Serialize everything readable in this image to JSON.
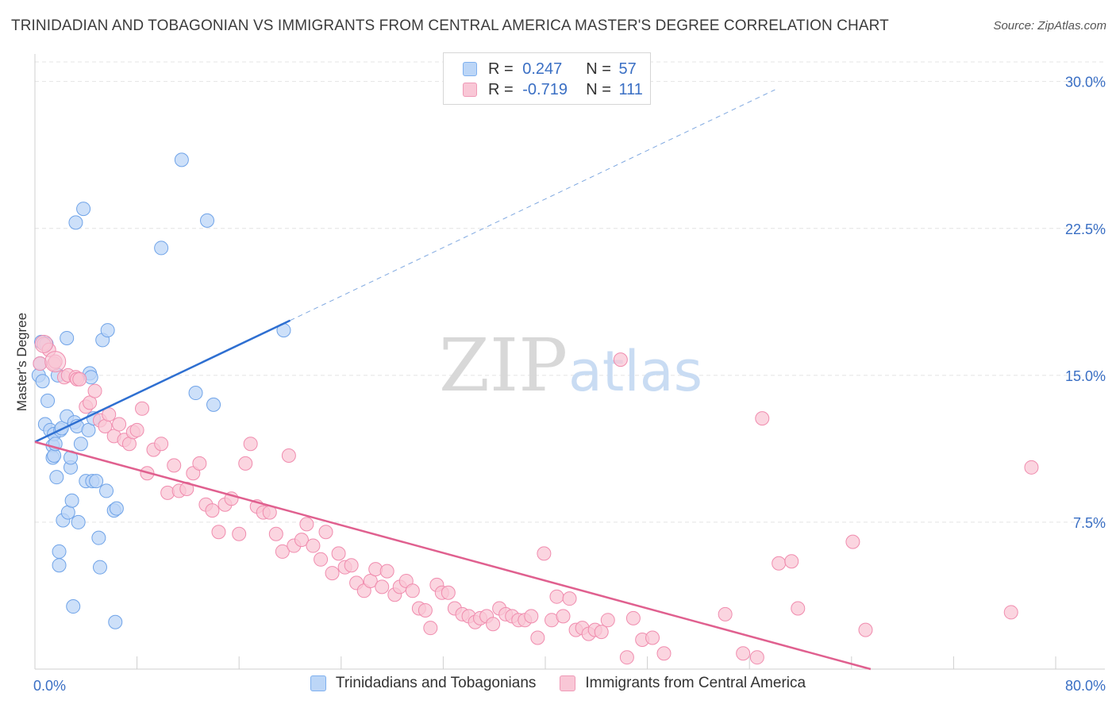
{
  "header": {
    "title": "TRINIDADIAN AND TOBAGONIAN VS IMMIGRANTS FROM CENTRAL AMERICA MASTER'S DEGREE CORRELATION CHART",
    "source": "Source: ZipAtlas.com"
  },
  "watermark": {
    "zip": "ZIP",
    "atlas": "atlas"
  },
  "legend": {
    "r_label": "R =",
    "n_label": "N =",
    "rows": [
      {
        "r": "0.247",
        "n": "57",
        "color": "#7fb0ef",
        "fill": "#bcd6f7"
      },
      {
        "r": "-0.719",
        "n": "111",
        "color": "#ef9ab7",
        "fill": "#f9c7d6"
      }
    ]
  },
  "chart_data": {
    "type": "scatter",
    "title": "TRINIDADIAN AND TOBAGONIAN VS IMMIGRANTS FROM CENTRAL AMERICA MASTER'S DEGREE CORRELATION CHART",
    "xlabel": "",
    "ylabel": "Master's Degree",
    "xlim": [
      0,
      80
    ],
    "ylim": [
      0,
      31
    ],
    "x_tick_labels": [
      "0.0%",
      "80.0%"
    ],
    "y_ticks": [
      7.5,
      15.0,
      22.5,
      30.0
    ],
    "y_tick_labels": [
      "7.5%",
      "15.0%",
      "22.5%",
      "30.0%"
    ],
    "grid": true,
    "legend_position": "bottom-center",
    "series": [
      {
        "name": "Trinidadians and Tobagonians",
        "color": "#6fa3e8",
        "line_color": "#2e6fd1",
        "trend": {
          "x0": 0,
          "y0": 11.6,
          "x1": 20.0,
          "y1": 17.8,
          "dash_to_x": 58.0
        },
        "points": [
          [
            0.3,
            15.0
          ],
          [
            0.4,
            15.6
          ],
          [
            0.5,
            16.7
          ],
          [
            0.6,
            14.7
          ],
          [
            0.8,
            12.5
          ],
          [
            0.9,
            16.6
          ],
          [
            1.0,
            13.7
          ],
          [
            1.2,
            12.2
          ],
          [
            1.4,
            11.4
          ],
          [
            1.4,
            10.8
          ],
          [
            1.5,
            12.0
          ],
          [
            1.5,
            10.9
          ],
          [
            1.6,
            11.5
          ],
          [
            1.7,
            9.8
          ],
          [
            1.8,
            15.0
          ],
          [
            1.9,
            6.0
          ],
          [
            1.9,
            5.3
          ],
          [
            2.0,
            12.2
          ],
          [
            2.1,
            12.3
          ],
          [
            2.2,
            7.6
          ],
          [
            2.5,
            16.9
          ],
          [
            2.5,
            12.9
          ],
          [
            2.6,
            8.0
          ],
          [
            2.8,
            10.3
          ],
          [
            2.8,
            10.8
          ],
          [
            2.9,
            8.6
          ],
          [
            3.0,
            3.2
          ],
          [
            3.1,
            12.6
          ],
          [
            3.2,
            22.8
          ],
          [
            3.3,
            12.4
          ],
          [
            3.4,
            7.5
          ],
          [
            3.6,
            11.5
          ],
          [
            3.8,
            23.5
          ],
          [
            4.0,
            9.6
          ],
          [
            4.2,
            12.2
          ],
          [
            4.3,
            15.1
          ],
          [
            4.4,
            14.9
          ],
          [
            4.5,
            9.6
          ],
          [
            4.6,
            12.8
          ],
          [
            4.8,
            9.6
          ],
          [
            5.0,
            6.7
          ],
          [
            5.1,
            5.2
          ],
          [
            5.3,
            16.8
          ],
          [
            5.6,
            9.1
          ],
          [
            5.7,
            17.3
          ],
          [
            6.2,
            8.1
          ],
          [
            6.3,
            2.4
          ],
          [
            6.4,
            8.2
          ],
          [
            9.9,
            21.5
          ],
          [
            11.5,
            26.0
          ],
          [
            12.6,
            14.1
          ],
          [
            13.5,
            22.9
          ],
          [
            14.0,
            13.5
          ],
          [
            19.5,
            17.3
          ]
        ]
      },
      {
        "name": "Immigrants from Central America",
        "color": "#f08cae",
        "line_color": "#e0608f",
        "trend": {
          "x0": 0,
          "y0": 11.6,
          "x1": 65.5,
          "y1": 0
        },
        "points": [
          [
            0.4,
            15.6
          ],
          [
            0.7,
            16.6
          ],
          [
            1.1,
            16.3
          ],
          [
            1.5,
            15.6
          ],
          [
            1.6,
            15.7
          ],
          [
            2.3,
            14.9
          ],
          [
            2.6,
            15.0
          ],
          [
            3.2,
            14.9
          ],
          [
            3.3,
            14.8
          ],
          [
            3.5,
            14.8
          ],
          [
            4.0,
            13.4
          ],
          [
            4.3,
            13.6
          ],
          [
            4.7,
            14.2
          ],
          [
            5.1,
            12.7
          ],
          [
            5.5,
            12.4
          ],
          [
            5.8,
            13.0
          ],
          [
            6.2,
            11.9
          ],
          [
            6.6,
            12.5
          ],
          [
            7.0,
            11.7
          ],
          [
            7.4,
            11.5
          ],
          [
            7.7,
            12.1
          ],
          [
            8.0,
            12.2
          ],
          [
            8.4,
            13.3
          ],
          [
            8.8,
            10.0
          ],
          [
            9.3,
            11.2
          ],
          [
            9.9,
            11.5
          ],
          [
            10.4,
            9.0
          ],
          [
            10.9,
            10.4
          ],
          [
            11.3,
            9.1
          ],
          [
            11.9,
            9.2
          ],
          [
            12.4,
            10.0
          ],
          [
            12.9,
            10.5
          ],
          [
            13.4,
            8.4
          ],
          [
            13.9,
            8.1
          ],
          [
            14.4,
            7.0
          ],
          [
            14.9,
            8.4
          ],
          [
            15.4,
            8.7
          ],
          [
            16.0,
            6.9
          ],
          [
            16.5,
            10.5
          ],
          [
            16.9,
            11.5
          ],
          [
            17.4,
            8.3
          ],
          [
            17.9,
            8.0
          ],
          [
            18.4,
            8.0
          ],
          [
            18.9,
            6.9
          ],
          [
            19.4,
            6.0
          ],
          [
            19.9,
            10.9
          ],
          [
            20.3,
            6.3
          ],
          [
            20.9,
            6.6
          ],
          [
            21.3,
            7.4
          ],
          [
            21.8,
            6.3
          ],
          [
            22.4,
            5.6
          ],
          [
            22.8,
            7.0
          ],
          [
            23.3,
            4.9
          ],
          [
            23.8,
            5.9
          ],
          [
            24.3,
            5.2
          ],
          [
            24.8,
            5.3
          ],
          [
            25.2,
            4.4
          ],
          [
            25.8,
            4.0
          ],
          [
            26.3,
            4.5
          ],
          [
            26.7,
            5.1
          ],
          [
            27.2,
            4.2
          ],
          [
            27.6,
            5.0
          ],
          [
            28.2,
            3.8
          ],
          [
            28.6,
            4.2
          ],
          [
            29.1,
            4.5
          ],
          [
            29.6,
            4.0
          ],
          [
            30.1,
            3.1
          ],
          [
            30.6,
            3.0
          ],
          [
            31.0,
            2.1
          ],
          [
            31.5,
            4.3
          ],
          [
            31.9,
            3.9
          ],
          [
            32.4,
            3.9
          ],
          [
            32.9,
            3.1
          ],
          [
            33.5,
            2.8
          ],
          [
            34.0,
            2.7
          ],
          [
            34.5,
            2.4
          ],
          [
            34.9,
            2.6
          ],
          [
            35.4,
            2.7
          ],
          [
            35.9,
            2.3
          ],
          [
            36.4,
            3.1
          ],
          [
            36.9,
            2.8
          ],
          [
            37.4,
            2.7
          ],
          [
            37.9,
            2.5
          ],
          [
            38.4,
            2.5
          ],
          [
            38.9,
            2.7
          ],
          [
            39.4,
            1.6
          ],
          [
            39.9,
            5.9
          ],
          [
            40.5,
            2.5
          ],
          [
            40.9,
            3.7
          ],
          [
            41.4,
            2.7
          ],
          [
            41.9,
            3.6
          ],
          [
            42.4,
            2.0
          ],
          [
            42.9,
            2.1
          ],
          [
            43.4,
            1.8
          ],
          [
            43.9,
            2.0
          ],
          [
            44.4,
            1.9
          ],
          [
            44.9,
            2.5
          ],
          [
            45.9,
            15.8
          ],
          [
            46.4,
            0.6
          ],
          [
            46.9,
            2.6
          ],
          [
            47.6,
            1.5
          ],
          [
            48.4,
            1.6
          ],
          [
            49.3,
            0.8
          ],
          [
            54.1,
            2.8
          ],
          [
            55.5,
            0.8
          ],
          [
            56.6,
            0.6
          ],
          [
            57.0,
            12.8
          ],
          [
            58.3,
            5.4
          ],
          [
            59.3,
            5.5
          ],
          [
            59.8,
            3.1
          ],
          [
            64.1,
            6.5
          ],
          [
            65.1,
            2.0
          ],
          [
            76.5,
            2.9
          ],
          [
            78.1,
            10.3
          ]
        ]
      }
    ]
  }
}
